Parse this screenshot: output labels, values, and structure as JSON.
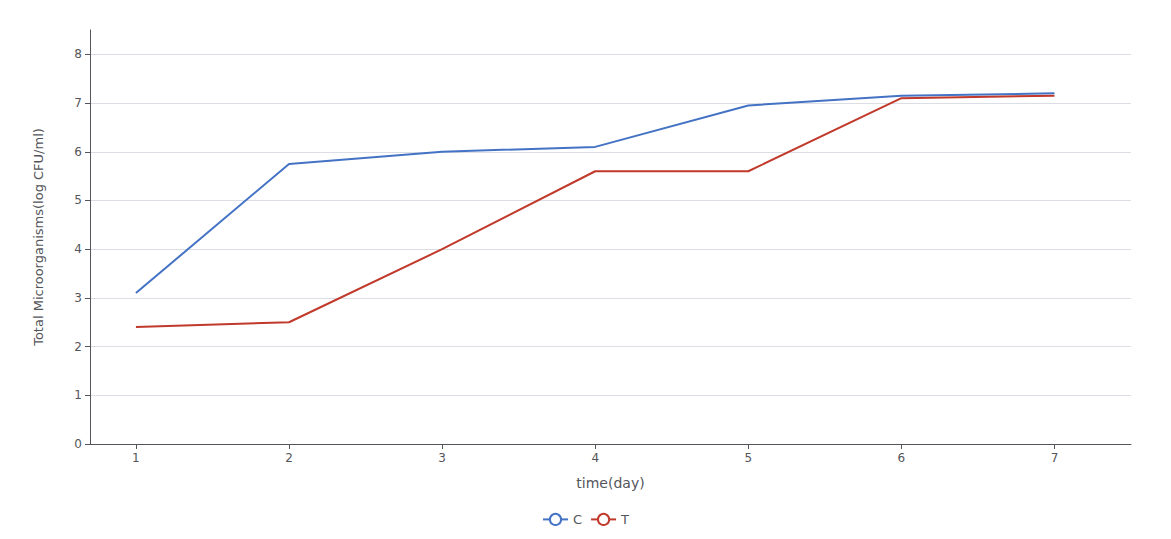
{
  "chart_data": {
    "type": "line",
    "xlabel": "time(day)",
    "ylabel": "Total Microorganisms(log CFU/ml)",
    "x": [
      1,
      2,
      3,
      4,
      5,
      6,
      7
    ],
    "series": [
      {
        "name": "C",
        "color": "#4472C4",
        "values": [
          3.1,
          5.75,
          6.0,
          6.1,
          6.95,
          7.15,
          7.2
        ]
      },
      {
        "name": "T",
        "color": "#C0392B",
        "values": [
          2.4,
          2.5,
          4.0,
          5.6,
          5.6,
          7.1,
          7.15
        ]
      }
    ],
    "xlim": [
      0.7,
      7.5
    ],
    "xticks": [
      1,
      2,
      3,
      4,
      5,
      6,
      7
    ],
    "ylim": [
      0,
      8.5
    ],
    "yticks": [
      0,
      1,
      2,
      3,
      4,
      5,
      6,
      7,
      8
    ],
    "grid": true,
    "legend": "bottom"
  }
}
